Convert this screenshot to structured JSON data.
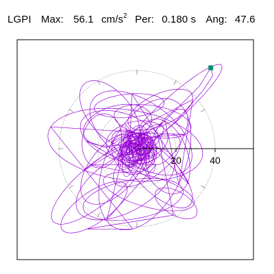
{
  "header": {
    "station": "LGPI",
    "max_label": "Max:",
    "max_value": "56.1",
    "max_unit_base": "cm/s",
    "max_unit_exp": "2",
    "period_label": "Per:",
    "period_value": "0.180 s",
    "angle_label": "Ang:",
    "angle_value": "47.6"
  },
  "colors": {
    "trace": "#9400D3",
    "marker": "#008B74",
    "grid": "#808080",
    "axis": "#000000",
    "frame": "#000000"
  },
  "chart_data": {
    "type": "scatter",
    "title": "LGPI  Max: 56.1 cm/s2  Per: 0.180 s  Ang: 47.6",
    "xlabel": "",
    "ylabel": "",
    "radial_rings": [
      20,
      40
    ],
    "ring_labels": [
      "20",
      "40"
    ],
    "r_max": 60,
    "tick_angles_deg": [
      0,
      30,
      60,
      90,
      120,
      150,
      180,
      210,
      240,
      270,
      300,
      330
    ],
    "max_amplitude": 56.1,
    "max_angle_deg": 47.6,
    "marker": {
      "x": 37.8,
      "y": 41.4,
      "shape": "square"
    },
    "trace_description": "horizontal particle-motion orbit, dense near origin",
    "orbit_loops": [
      {
        "cx": 0,
        "cy": 0,
        "a": 8,
        "b": 6,
        "rot": 20
      },
      {
        "cx": -2,
        "cy": 1,
        "a": 12,
        "b": 7,
        "rot": -30
      },
      {
        "cx": 1,
        "cy": -2,
        "a": 10,
        "b": 9,
        "rot": 70
      },
      {
        "cx": 3,
        "cy": 2,
        "a": 14,
        "b": 5,
        "rot": 45
      },
      {
        "cx": -4,
        "cy": -3,
        "a": 11,
        "b": 8,
        "rot": -60
      },
      {
        "cx": 0,
        "cy": 4,
        "a": 16,
        "b": 10,
        "rot": 10
      },
      {
        "cx": -8,
        "cy": 6,
        "a": 22,
        "b": 12,
        "rot": -20
      },
      {
        "cx": 5,
        "cy": -6,
        "a": 20,
        "b": 9,
        "rot": 35
      },
      {
        "cx": -10,
        "cy": 12,
        "a": 18,
        "b": 10,
        "rot": 15
      },
      {
        "cx": 8,
        "cy": 14,
        "a": 20,
        "b": 8,
        "rot": -10
      },
      {
        "cx": -12,
        "cy": -10,
        "a": 22,
        "b": 12,
        "rot": 50
      },
      {
        "cx": 10,
        "cy": -12,
        "a": 24,
        "b": 10,
        "rot": -45
      },
      {
        "cx": -4,
        "cy": 22,
        "a": 18,
        "b": 6,
        "rot": 5
      },
      {
        "cx": 6,
        "cy": -22,
        "a": 24,
        "b": 8,
        "rot": -15
      },
      {
        "cx": -18,
        "cy": 4,
        "a": 14,
        "b": 10,
        "rot": 80
      },
      {
        "cx": 16,
        "cy": 6,
        "a": 16,
        "b": 7,
        "rot": 60
      },
      {
        "cx": -6,
        "cy": -18,
        "a": 28,
        "b": 14,
        "rot": 30
      },
      {
        "cx": 2,
        "cy": 8,
        "a": 30,
        "b": 16,
        "rot": -35
      },
      {
        "cx": -14,
        "cy": 18,
        "a": 20,
        "b": 11,
        "rot": -50
      },
      {
        "cx": 12,
        "cy": 20,
        "a": 18,
        "b": 8,
        "rot": 25
      },
      {
        "cx": -2,
        "cy": -26,
        "a": 26,
        "b": 10,
        "rot": 10
      },
      {
        "cx": 14,
        "cy": -4,
        "a": 12,
        "b": 20,
        "rot": 20
      },
      {
        "cx": -20,
        "cy": -18,
        "a": 30,
        "b": 10,
        "rot": 40
      },
      {
        "cx": 18,
        "cy": 20,
        "a": 34,
        "b": 6,
        "rot": 42
      },
      {
        "cx": -6,
        "cy": 2,
        "a": 40,
        "b": 18,
        "rot": -8
      },
      {
        "cx": 4,
        "cy": -8,
        "a": 36,
        "b": 20,
        "rot": 65
      },
      {
        "cx": -22,
        "cy": -30,
        "a": 20,
        "b": 8,
        "rot": 35
      },
      {
        "cx": 20,
        "cy": -28,
        "a": 12,
        "b": 6,
        "rot": -30
      }
    ]
  }
}
